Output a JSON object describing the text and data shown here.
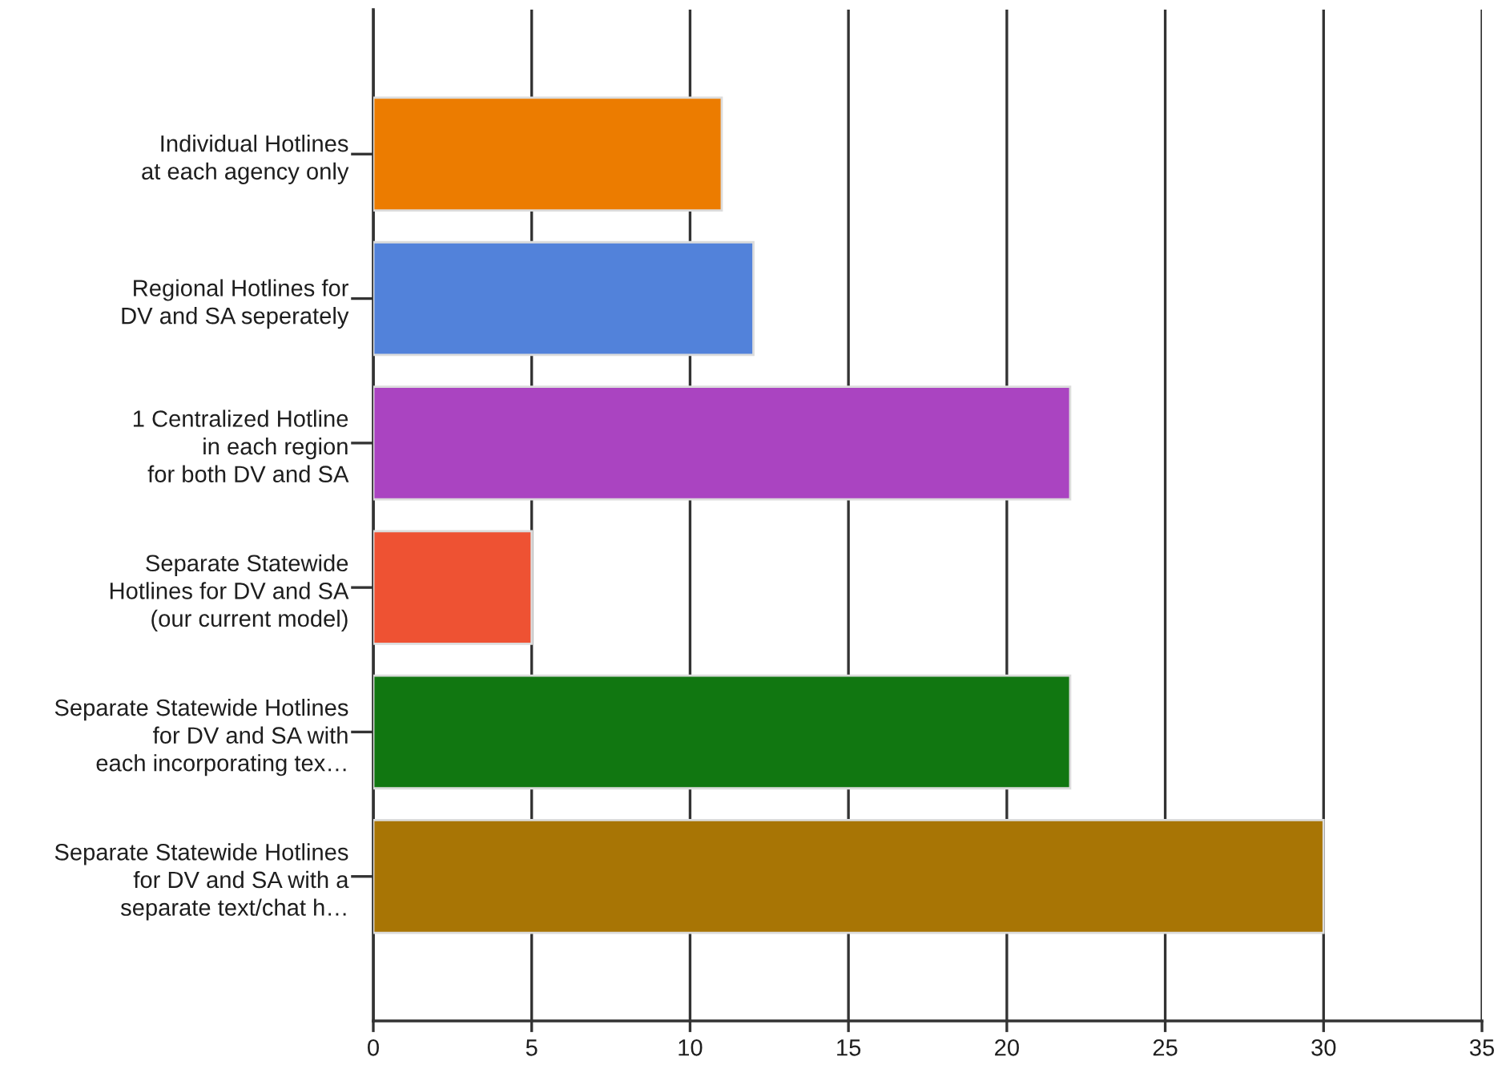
{
  "chart_data": {
    "type": "bar",
    "orientation": "horizontal",
    "categories": [
      "Individual Hotlines\nat each agency only",
      "Regional Hotlines for\nDV and SA seperately",
      "1 Centralized Hotline\nin each region\nfor both DV and SA",
      "Separate Statewide\nHotlines for DV and SA\n(our current model)",
      "Separate Statewide Hotlines\nfor DV and SA with\neach incorporating tex…",
      "Separate Statewide Hotlines\nfor DV and SA with a\nseparate text/chat h…"
    ],
    "values": [
      11,
      12,
      22,
      5,
      22,
      30
    ],
    "colors": [
      "#ec7c00",
      "#5282da",
      "#aa44c1",
      "#ee5233",
      "#117711",
      "#a87505"
    ],
    "xlim": [
      0,
      35
    ],
    "xticks": [
      0,
      5,
      10,
      15,
      20,
      25,
      30,
      35
    ],
    "grid": "x"
  }
}
